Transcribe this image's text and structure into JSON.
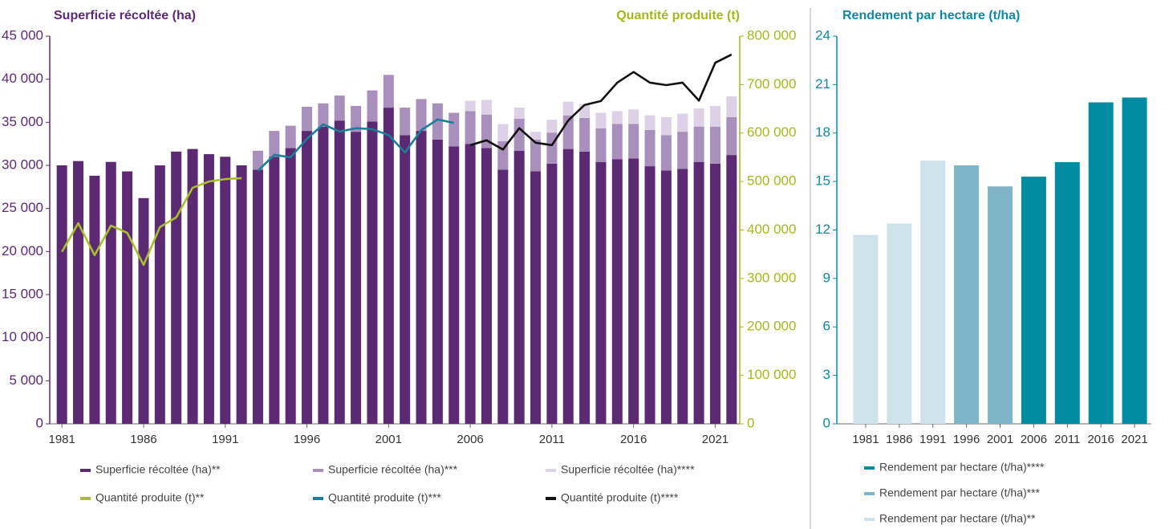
{
  "chart_data": [
    {
      "type": "bar",
      "stacked": true,
      "y_title": "Superficie récoltée (ha)",
      "y2_title": "Quantité produite (t)",
      "categories": [
        "1981",
        null,
        null,
        null,
        null,
        "1986",
        null,
        null,
        null,
        null,
        "1991",
        null,
        null,
        null,
        null,
        "1996",
        null,
        null,
        null,
        null,
        "2001",
        null,
        null,
        null,
        null,
        "2006",
        null,
        null,
        null,
        null,
        "2011",
        null,
        null,
        null,
        null,
        "2016",
        null,
        null,
        null,
        null,
        "2021",
        null
      ],
      "ylim": [
        0,
        45000
      ],
      "yticks": [
        0,
        {
          "value": 5000,
          "label": "5 000"
        },
        {
          "value": 10000,
          "label": "10 000"
        },
        {
          "value": 15000,
          "label": "15 000"
        },
        {
          "value": 20000,
          "label": "20 000"
        },
        {
          "value": 25000,
          "label": "25 000"
        },
        {
          "value": 30000,
          "label": "30 000"
        },
        {
          "value": 35000,
          "label": "35 000"
        },
        {
          "value": 40000,
          "label": "40 000"
        },
        {
          "value": 45000,
          "label": "45 000"
        }
      ],
      "y2lim": [
        0,
        800000
      ],
      "y2ticks": [
        0,
        {
          "value": 100000,
          "label": "100 000"
        },
        {
          "value": 200000,
          "label": "200 000"
        },
        {
          "value": 300000,
          "label": "300 000"
        },
        {
          "value": 400000,
          "label": "400 000"
        },
        {
          "value": 500000,
          "label": "500 000"
        },
        {
          "value": 600000,
          "label": "600 000"
        },
        {
          "value": 700000,
          "label": "700 000"
        },
        {
          "value": 800000,
          "label": "800 000"
        }
      ],
      "series": [
        {
          "name": "Superficie récoltée (ha)**",
          "type": "bar",
          "color": "#5b2a73",
          "values": [
            30000,
            30500,
            28800,
            30400,
            29300,
            26200,
            30000,
            31600,
            31900,
            31300,
            31000,
            30000,
            29500,
            31000,
            32000,
            34000,
            34500,
            35200,
            33900,
            35100,
            36700,
            33500,
            34000,
            33000,
            32200,
            32500,
            32000,
            29500,
            31700,
            29300,
            30200,
            31900,
            31600,
            30400,
            30700,
            30800,
            29900,
            29400,
            29600,
            30400,
            30200,
            31200
          ]
        },
        {
          "name": "Superficie récoltée (ha)***",
          "type": "bar",
          "color": "#a98fbb",
          "values": [
            null,
            null,
            null,
            null,
            null,
            null,
            null,
            null,
            null,
            null,
            null,
            null,
            2200,
            3000,
            2600,
            2800,
            2700,
            2900,
            3000,
            3600,
            3800,
            3200,
            3700,
            4200,
            3900,
            3800,
            3900,
            3300,
            3700,
            3700,
            3600,
            3900,
            3900,
            3900,
            4100,
            4000,
            4200,
            4100,
            4300,
            4100,
            4300,
            4400
          ]
        },
        {
          "name": "Superficie récoltée (ha)****",
          "type": "bar",
          "color": "#dcd1e6",
          "values": [
            null,
            null,
            null,
            null,
            null,
            null,
            null,
            null,
            null,
            null,
            null,
            null,
            null,
            null,
            null,
            null,
            null,
            null,
            null,
            null,
            null,
            null,
            null,
            null,
            null,
            1200,
            1700,
            2000,
            1300,
            900,
            1500,
            1600,
            1600,
            1800,
            1500,
            1700,
            1700,
            2100,
            2100,
            2100,
            2400,
            2400
          ]
        },
        {
          "name": "Quantité produite (t)**",
          "type": "line",
          "axis": "y2",
          "color": "#a9be2a",
          "values": [
            355000,
            414000,
            348000,
            409000,
            394000,
            328000,
            406000,
            426000,
            487000,
            500000,
            505000,
            507000,
            null,
            null,
            null,
            null,
            null,
            null,
            null,
            null,
            null,
            null,
            null,
            null,
            null,
            null,
            null,
            null,
            null,
            null,
            null,
            null,
            null,
            null,
            null,
            null,
            null,
            null,
            null,
            null,
            null,
            null
          ]
        },
        {
          "name": "Quantité produite (t)***",
          "type": "line",
          "axis": "y2",
          "color": "#1a7f98",
          "values": [
            null,
            null,
            null,
            null,
            null,
            null,
            null,
            null,
            null,
            null,
            null,
            null,
            522000,
            555000,
            550000,
            588000,
            618000,
            603000,
            610000,
            608000,
            596000,
            560000,
            606000,
            628000,
            621000,
            null,
            null,
            null,
            null,
            null,
            null,
            null,
            null,
            null,
            null,
            null,
            null,
            null,
            null,
            null,
            null,
            null
          ]
        },
        {
          "name": "Quantité produite (t)****",
          "type": "line",
          "axis": "y2",
          "color": "#111111",
          "values": [
            null,
            null,
            null,
            null,
            null,
            null,
            null,
            null,
            null,
            null,
            null,
            null,
            null,
            null,
            null,
            null,
            null,
            null,
            null,
            null,
            null,
            null,
            null,
            null,
            null,
            575000,
            585000,
            566000,
            610000,
            580000,
            575000,
            626000,
            658000,
            666000,
            704000,
            726000,
            704000,
            699000,
            704000,
            667000,
            745000,
            762000
          ]
        }
      ]
    },
    {
      "type": "bar",
      "stacked": false,
      "title": "Rendement par hectare (t/ha)",
      "categories": [
        "1981",
        "1986",
        "1991",
        "1996",
        "2001",
        "2006",
        "2011",
        "2016",
        "2021"
      ],
      "ylim": [
        0,
        24
      ],
      "yticks": [
        0,
        3,
        6,
        9,
        12,
        15,
        18,
        21,
        24
      ],
      "series": [
        {
          "name": "Rendement par hectare (t/ha)****",
          "color": "#008ba3",
          "values": [
            null,
            null,
            null,
            null,
            null,
            15.3,
            16.2,
            19.9,
            20.2
          ]
        },
        {
          "name": "Rendement par hectare (t/ha)***",
          "color": "#7fb5c8",
          "values": [
            null,
            null,
            null,
            16.0,
            14.7,
            null,
            null,
            null,
            null
          ]
        },
        {
          "name": "Rendement par hectare (t/ha)**",
          "color": "#cde2ea",
          "values": [
            11.7,
            12.4,
            16.3,
            null,
            null,
            null,
            null,
            null,
            null
          ]
        }
      ]
    }
  ]
}
